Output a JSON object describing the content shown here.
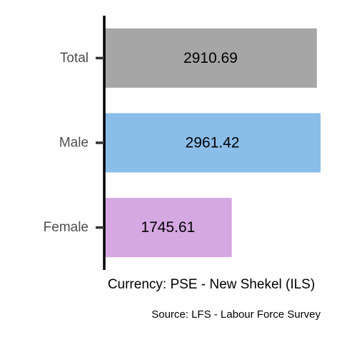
{
  "chart_data": {
    "type": "bar",
    "orientation": "horizontal",
    "categories": [
      "Total",
      "Male",
      "Female"
    ],
    "values": [
      2910.69,
      2961.42,
      1745.61
    ],
    "value_labels": [
      "2910.69",
      "2961.42",
      "1745.61"
    ],
    "colors": [
      "#a6a6a6",
      "#8bbde9",
      "#d6a8e2"
    ],
    "xlabel": "Currency: PSE - New Shekel (ILS)",
    "caption": "Source:  LFS - Labour Force Survey",
    "xlim": [
      0,
      2961.42
    ],
    "grid": false,
    "legend": "none"
  }
}
